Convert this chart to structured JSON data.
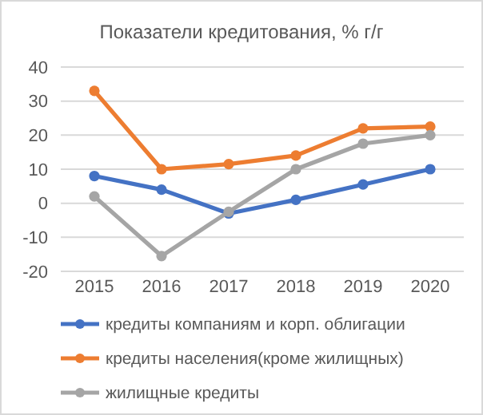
{
  "chart_data": {
    "type": "line",
    "title": "Показатели кредитования, % г/г",
    "categories": [
      "2015",
      "2016",
      "2017",
      "2018",
      "2019",
      "2020"
    ],
    "series": [
      {
        "name": "кредиты компаниям и корп. облигации",
        "color": "#4472c4",
        "values": [
          8,
          4,
          -3,
          1,
          5.5,
          10
        ]
      },
      {
        "name": "кредиты населения(кроме жилищных)",
        "color": "#ed7d31",
        "values": [
          33,
          10,
          11.5,
          14,
          22,
          22.5
        ]
      },
      {
        "name": "жилищные кредиты",
        "color": "#a5a5a5",
        "values": [
          2,
          -15.5,
          -2.5,
          10,
          17.5,
          20
        ]
      }
    ],
    "ylim": [
      -20,
      40
    ],
    "yticks": [
      -20,
      -10,
      0,
      10,
      20,
      30,
      40
    ],
    "grid": "y",
    "legend": "bottom",
    "marker": "circle",
    "line_style": "solid"
  }
}
